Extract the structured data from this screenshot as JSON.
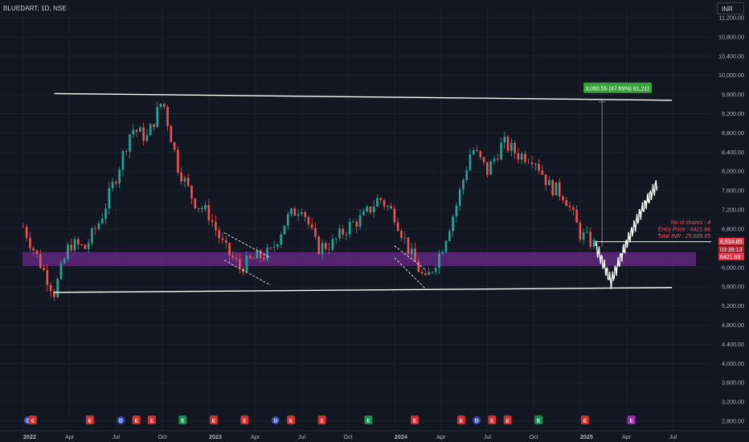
{
  "header": {
    "symbol_label": "BLUEDART, 1D, NSE",
    "currency": "INR"
  },
  "colors": {
    "background": "#131722",
    "grid": "#1c202b",
    "bull": "#26a69a",
    "bear": "#ef5350",
    "zone": "#6a2a8a",
    "line": "#ffffff",
    "measure_bg": "#36a33a",
    "price_tag": "#f23645",
    "info_text": "#f7525f"
  },
  "chart_data": {
    "type": "candlestick",
    "x_axis": {
      "tick_labels": [
        "2022",
        "Apr",
        "Jul",
        "Oct",
        "2023",
        "Apr",
        "Jul",
        "Oct",
        "2024",
        "Apr",
        "Jul",
        "Oct",
        "2025",
        "Apr",
        "Jul"
      ],
      "bold_labels": [
        "2022",
        "2023",
        "2024",
        "2025"
      ]
    },
    "y_axis": {
      "ticks": [
        "11,200.00",
        "10,800.00",
        "10,400.00",
        "10,000.00",
        "9,600.00",
        "9,200.00",
        "8,800.00",
        "8,400.00",
        "8,000.00",
        "7,600.00",
        "7,200.00",
        "6,800.00",
        "6,400.00",
        "6,000.00",
        "5,600.00",
        "5,200.00",
        "4,800.00",
        "4,400.00",
        "4,000.00",
        "3,600.00",
        "3,200.00",
        "2,800.00"
      ],
      "range": [
        2600,
        11400
      ]
    },
    "price_path": [
      [
        "2022-01",
        6850
      ],
      [
        "2022-02",
        6150
      ],
      [
        "2022-03",
        5480
      ],
      [
        "2022-04",
        6500
      ],
      [
        "2022-05",
        6400
      ],
      [
        "2022-06",
        7000
      ],
      [
        "2022-07",
        7900
      ],
      [
        "2022-08",
        8900
      ],
      [
        "2022-09",
        8700
      ],
      [
        "2022-10",
        9500
      ],
      [
        "2022-11",
        8100
      ],
      [
        "2022-12",
        7400
      ],
      [
        "2023-01",
        7100
      ],
      [
        "2023-02",
        6400
      ],
      [
        "2023-03",
        6000
      ],
      [
        "2023-04",
        6200
      ],
      [
        "2023-05",
        6300
      ],
      [
        "2023-06",
        7000
      ],
      [
        "2023-07",
        7300
      ],
      [
        "2023-08",
        6400
      ],
      [
        "2023-09",
        6500
      ],
      [
        "2023-10",
        6850
      ],
      [
        "2023-11",
        7050
      ],
      [
        "2023-12",
        7450
      ],
      [
        "2024-01",
        7100
      ],
      [
        "2024-02",
        6300
      ],
      [
        "2024-03",
        5700
      ],
      [
        "2024-04",
        6350
      ],
      [
        "2024-05",
        7300
      ],
      [
        "2024-06",
        8500
      ],
      [
        "2024-07",
        8000
      ],
      [
        "2024-08",
        8600
      ],
      [
        "2024-09",
        8350
      ],
      [
        "2024-10",
        8300
      ],
      [
        "2024-11",
        7700
      ],
      [
        "2024-12",
        7500
      ],
      [
        "2025-01",
        6700
      ],
      [
        "2025-02",
        6450
      ]
    ],
    "projection_path": [
      [
        "2025-02",
        6450
      ],
      [
        "2025-03",
        5700
      ],
      [
        "2025-04",
        6500
      ],
      [
        "2025-05",
        7200
      ],
      [
        "2025-06",
        7750
      ]
    ],
    "support_zone": [
      6030,
      6320
    ],
    "upper_trendline": [
      [
        "2021-12",
        9620
      ],
      [
        "2025-06",
        9480
      ]
    ],
    "lower_trendline": [
      [
        "2021-12",
        5480
      ],
      [
        "2025-06",
        5580
      ]
    ],
    "annotations": {
      "measure_label": "3,060.55 (47.69%) 61,211",
      "position_info": [
        "No of shares : 4",
        "Entry Price : 6421.66",
        "Total INR : 25,686.65"
      ],
      "price_tags": [
        {
          "label": "6,534.85",
          "value": 6534.85
        },
        {
          "label": "03:39:13",
          "value": 6380
        },
        {
          "label": "6421.65",
          "value": 6421.65
        }
      ]
    },
    "event_markers": [
      [
        "2022-01",
        "D"
      ],
      [
        "2022-01",
        "E"
      ],
      [
        "2022-05",
        "E"
      ],
      [
        "2022-07",
        "D"
      ],
      [
        "2022-08",
        "E"
      ],
      [
        "2022-09",
        "E"
      ],
      [
        "2022-11",
        "E"
      ],
      [
        "2023-01",
        "E"
      ],
      [
        "2023-03",
        "E"
      ],
      [
        "2023-05",
        "D"
      ],
      [
        "2023-06",
        "E"
      ],
      [
        "2023-08",
        "E"
      ],
      [
        "2023-11",
        "E"
      ],
      [
        "2024-02",
        "E"
      ],
      [
        "2024-05",
        "E"
      ],
      [
        "2024-06",
        "D"
      ],
      [
        "2024-07",
        "E"
      ],
      [
        "2024-08",
        "E"
      ],
      [
        "2024-10",
        "E"
      ],
      [
        "2025-01",
        "E"
      ],
      [
        "2025-04",
        "E"
      ]
    ],
    "grid": true,
    "legend": "none"
  }
}
